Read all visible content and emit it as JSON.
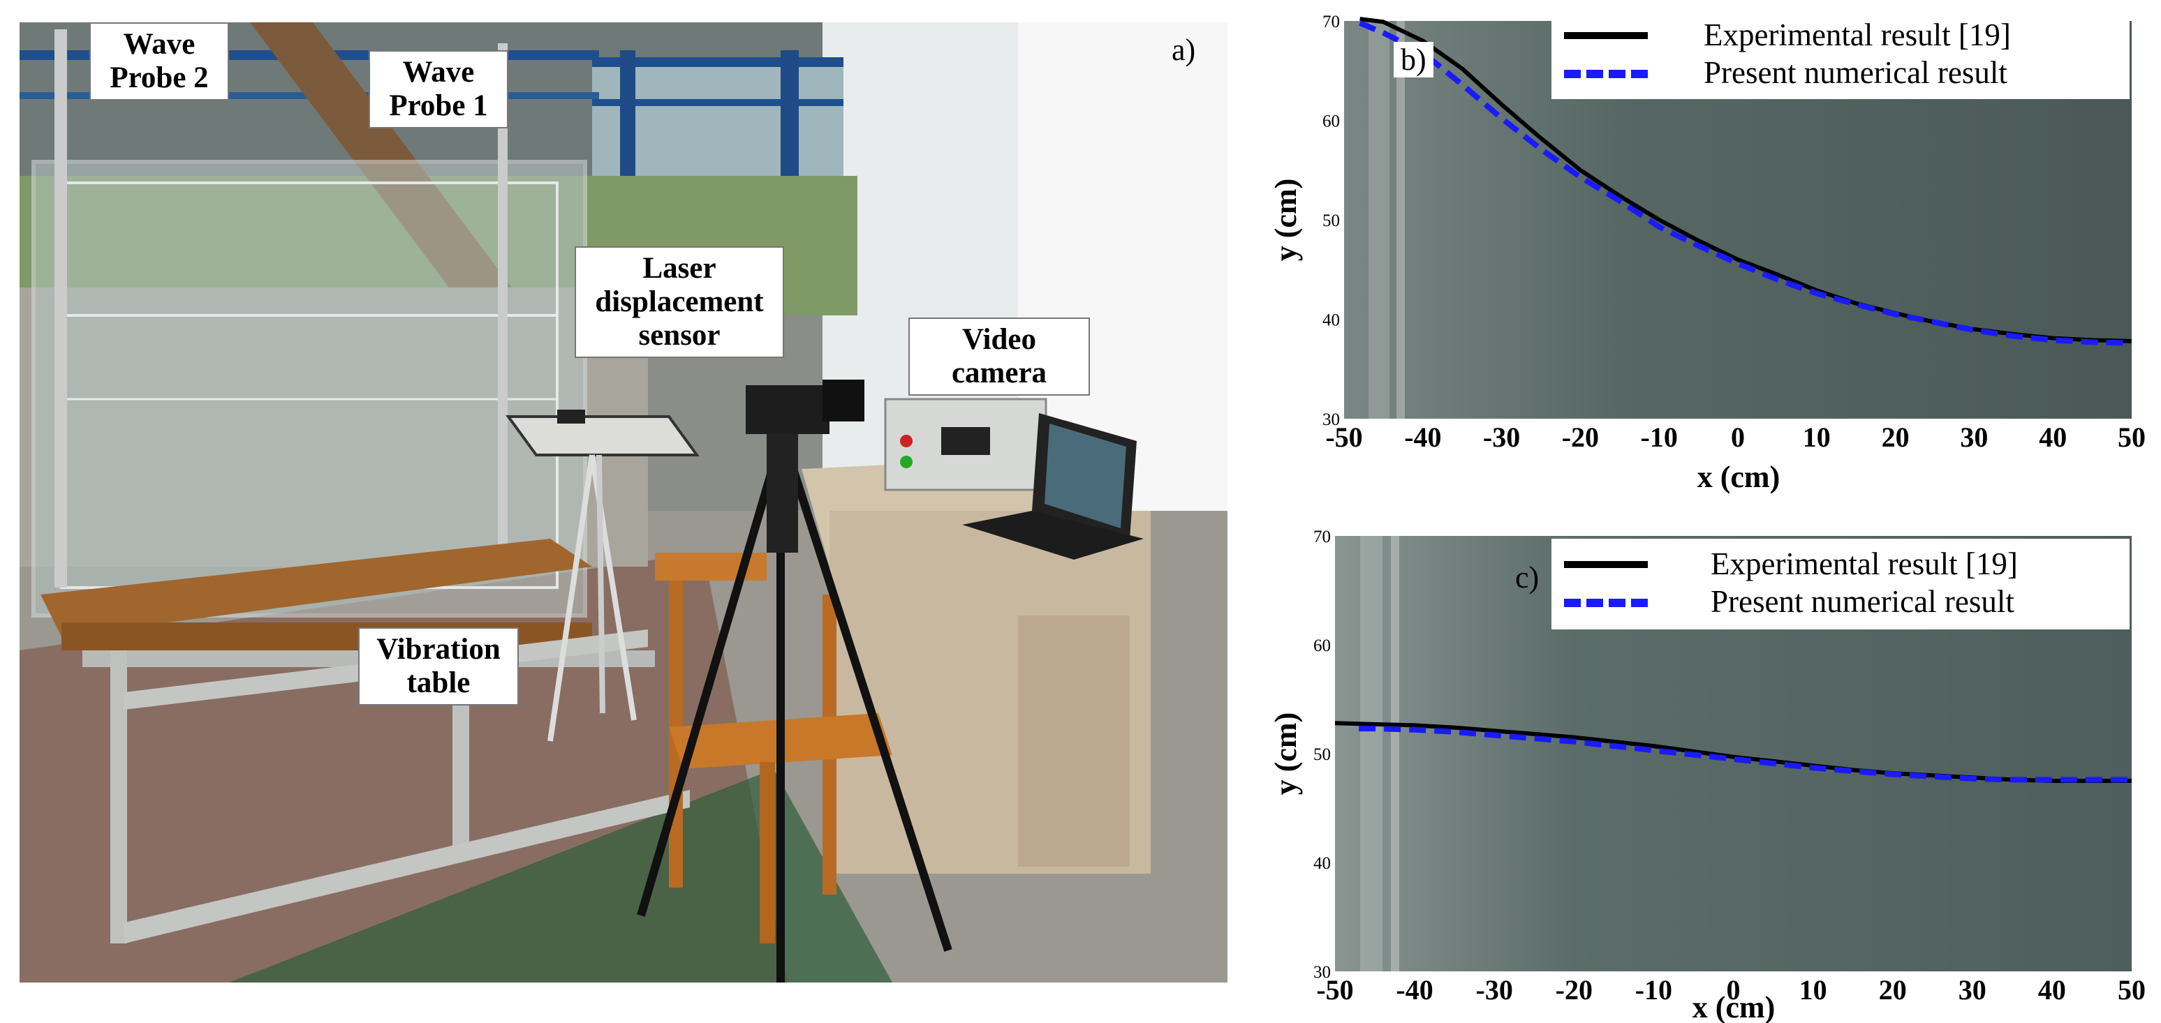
{
  "panel_a": {
    "letter": "a)",
    "labels": {
      "wave_probe_2": [
        "Wave",
        "Probe 2"
      ],
      "wave_probe_1": [
        "Wave",
        "Probe 1"
      ],
      "laser_sensor": [
        "Laser",
        "displacement",
        "sensor"
      ],
      "video_camera": [
        "Video",
        "camera"
      ],
      "vibration_table": [
        "Vibration",
        "table"
      ]
    }
  },
  "chart_data": [
    {
      "panel": "b)",
      "type": "line",
      "xlabel": "x (cm)",
      "ylabel": "y (cm)",
      "xlim": [
        -50,
        50
      ],
      "ylim": [
        30,
        70
      ],
      "x_ticks": [
        -50,
        -40,
        -30,
        -20,
        -10,
        0,
        10,
        20,
        30,
        40,
        50
      ],
      "y_ticks": [
        30,
        40,
        50,
        60,
        70
      ],
      "legend_position": "top-right",
      "series": [
        {
          "name": "Experimental result [19]",
          "color": "#000000",
          "style": "solid",
          "x": [
            -48,
            -45,
            -40,
            -35,
            -30,
            -25,
            -20,
            -15,
            -10,
            -5,
            0,
            5,
            10,
            15,
            20,
            25,
            30,
            35,
            40,
            45,
            50
          ],
          "y": [
            70.2,
            69.9,
            68.0,
            65.2,
            61.6,
            58.2,
            55.0,
            52.4,
            50.0,
            47.9,
            46.0,
            44.5,
            42.9,
            41.6,
            40.6,
            39.7,
            39.0,
            38.5,
            38.1,
            37.9,
            37.8
          ]
        },
        {
          "name": "Present numerical result",
          "color": "#1a1aff",
          "style": "dashed",
          "x": [
            -48,
            -45,
            -40,
            -35,
            -30,
            -25,
            -20,
            -15,
            -10,
            -5,
            0,
            5,
            10,
            15,
            20,
            25,
            30,
            35,
            40,
            45,
            50
          ],
          "y": [
            69.8,
            68.8,
            66.8,
            63.6,
            60.2,
            57.1,
            54.3,
            51.9,
            49.3,
            47.4,
            45.6,
            44.0,
            42.6,
            41.5,
            40.5,
            39.7,
            38.9,
            38.3,
            37.9,
            37.7,
            37.6
          ]
        }
      ]
    },
    {
      "panel": "c)",
      "type": "line",
      "xlabel": "x (cm)",
      "ylabel": "y (cm)",
      "xlim": [
        -50,
        50
      ],
      "ylim": [
        30,
        70
      ],
      "x_ticks": [
        -50,
        -40,
        -30,
        -20,
        -10,
        0,
        10,
        20,
        30,
        40,
        50
      ],
      "y_ticks": [
        30,
        40,
        50,
        60,
        70
      ],
      "legend_position": "top-right",
      "series": [
        {
          "name": "Experimental result [19]",
          "color": "#000000",
          "style": "solid",
          "x": [
            -50,
            -45,
            -40,
            -35,
            -30,
            -25,
            -20,
            -15,
            -10,
            -5,
            0,
            5,
            10,
            15,
            20,
            25,
            30,
            35,
            40,
            45,
            50
          ],
          "y": [
            52.8,
            52.7,
            52.6,
            52.4,
            52.1,
            51.8,
            51.5,
            51.1,
            50.7,
            50.2,
            49.7,
            49.3,
            48.9,
            48.5,
            48.2,
            48.0,
            47.8,
            47.6,
            47.5,
            47.5,
            47.5
          ]
        },
        {
          "name": "Present numerical result",
          "color": "#1a1aff",
          "style": "dashed",
          "x": [
            -47,
            -45,
            -40,
            -35,
            -30,
            -25,
            -20,
            -15,
            -10,
            -5,
            0,
            5,
            10,
            15,
            20,
            25,
            30,
            35,
            40,
            45,
            50
          ],
          "y": [
            52.3,
            52.3,
            52.2,
            52.0,
            51.7,
            51.4,
            51.1,
            50.7,
            50.3,
            49.9,
            49.5,
            49.1,
            48.7,
            48.4,
            48.1,
            47.9,
            47.7,
            47.6,
            47.6,
            47.6,
            47.6
          ]
        }
      ]
    }
  ]
}
